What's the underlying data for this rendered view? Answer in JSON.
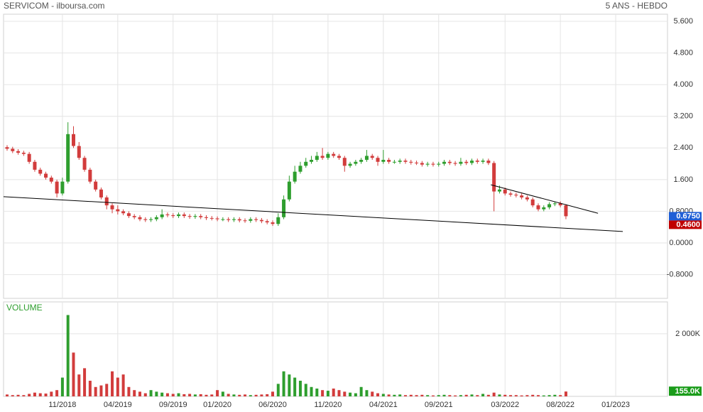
{
  "chart_data": [
    {
      "type": "candlestick",
      "title": "SERVICOM - ilboursa.com",
      "subtitle": "5 ANS - HEBDO",
      "up_color": "#2e9e2e",
      "down_color": "#d23c3c",
      "grid": true,
      "xlim": [
        4.68,
        64.68
      ],
      "xticks": [
        {
          "value": 10,
          "label": "11/2018"
        },
        {
          "value": 15,
          "label": "04/2019"
        },
        {
          "value": 20,
          "label": "09/2019"
        },
        {
          "value": 24,
          "label": "01/2020"
        },
        {
          "value": 29,
          "label": "06/2020"
        },
        {
          "value": 34,
          "label": "11/2020"
        },
        {
          "value": 39,
          "label": "04/2021"
        },
        {
          "value": 44,
          "label": "09/2021"
        },
        {
          "value": 50,
          "label": "03/2022"
        },
        {
          "value": 55,
          "label": "08/2022"
        },
        {
          "value": 60,
          "label": "01/2023"
        }
      ],
      "ylim": [
        -1.4,
        5.78
      ],
      "yticks": [
        {
          "value": 5.6,
          "label": "5.600"
        },
        {
          "value": 4.8,
          "label": "4.800"
        },
        {
          "value": 4,
          "label": "4.000"
        },
        {
          "value": 3.2,
          "label": "3.200"
        },
        {
          "value": 2.4,
          "label": "2.400"
        },
        {
          "value": 1.6,
          "label": "1.600"
        },
        {
          "value": 0.8,
          "label": "0.8000"
        },
        {
          "value": 0,
          "label": "0.0000"
        },
        {
          "value": -0.8,
          "label": "-0.8000"
        }
      ],
      "x": [
        5,
        5.5,
        6,
        6.5,
        7,
        7.5,
        8,
        8.5,
        9,
        9.5,
        10,
        10.5,
        11,
        11.5,
        12,
        12.5,
        13,
        13.5,
        14,
        14.5,
        15,
        15.5,
        16,
        16.5,
        17,
        17.5,
        18,
        18.5,
        19,
        19.5,
        20,
        20.5,
        21,
        21.5,
        22,
        22.5,
        23,
        23.5,
        24,
        24.5,
        25,
        25.5,
        26,
        26.5,
        27,
        27.5,
        28,
        28.5,
        29,
        29.5,
        30,
        30.5,
        31,
        31.5,
        32,
        32.5,
        33,
        33.5,
        34,
        34.5,
        35,
        35.5,
        36,
        36.5,
        37,
        37.5,
        38,
        38.5,
        39,
        39.5,
        40,
        40.5,
        41,
        41.5,
        42,
        42.5,
        43,
        43.5,
        44,
        44.5,
        45,
        45.5,
        46,
        46.5,
        47,
        47.5,
        48,
        48.5,
        49,
        49.5,
        50,
        50.5,
        51,
        51.5,
        52,
        52.5,
        53,
        53.5,
        54,
        54.5,
        55,
        55.5
      ],
      "open": [
        2.42,
        2.38,
        2.32,
        2.28,
        2.25,
        2.05,
        1.85,
        1.75,
        1.65,
        1.55,
        1.25,
        1.55,
        2.75,
        2.45,
        2.15,
        1.85,
        1.55,
        1.35,
        1.15,
        0.95,
        0.85,
        0.8,
        0.75,
        0.68,
        0.65,
        0.6,
        0.58,
        0.6,
        0.65,
        0.72,
        0.7,
        0.68,
        0.72,
        0.68,
        0.66,
        0.68,
        0.65,
        0.63,
        0.62,
        0.6,
        0.6,
        0.58,
        0.6,
        0.57,
        0.56,
        0.6,
        0.58,
        0.55,
        0.52,
        0.48,
        0.65,
        1.1,
        1.55,
        1.8,
        1.95,
        2.05,
        2.1,
        2.2,
        2.15,
        2.25,
        2.2,
        2.15,
        1.95,
        2.0,
        2.05,
        2.1,
        2.2,
        2.15,
        2.05,
        2.1,
        2.05,
        2.05,
        2.08,
        2.05,
        2.03,
        2.02,
        1.98,
        2.0,
        1.98,
        2.0,
        2.05,
        2.02,
        2.0,
        2.05,
        2.02,
        2.08,
        2.05,
        2.08,
        2.02,
        1.3,
        1.35,
        1.25,
        1.22,
        1.2,
        1.15,
        1.1,
        0.95,
        0.85,
        0.9,
        0.98,
        1.0,
        0.95
      ],
      "high": [
        2.47,
        2.43,
        2.37,
        2.33,
        2.3,
        2.1,
        1.9,
        1.8,
        1.7,
        1.6,
        1.65,
        3.05,
        2.95,
        2.55,
        2.2,
        1.9,
        1.6,
        1.4,
        1.2,
        1.0,
        0.95,
        0.85,
        0.8,
        0.73,
        0.7,
        0.65,
        0.65,
        0.7,
        0.85,
        0.77,
        0.75,
        0.77,
        0.77,
        0.73,
        0.73,
        0.73,
        0.7,
        0.68,
        0.67,
        0.65,
        0.65,
        0.65,
        0.65,
        0.62,
        0.65,
        0.65,
        0.63,
        0.6,
        0.57,
        0.75,
        1.2,
        1.7,
        1.95,
        2.05,
        2.15,
        2.2,
        2.3,
        2.4,
        2.3,
        2.3,
        2.25,
        2.2,
        2.05,
        2.1,
        2.15,
        2.35,
        2.25,
        2.2,
        2.35,
        2.15,
        2.1,
        2.13,
        2.13,
        2.1,
        2.08,
        2.07,
        2.05,
        2.05,
        2.05,
        2.1,
        2.1,
        2.07,
        2.15,
        2.1,
        2.13,
        2.13,
        2.13,
        2.13,
        2.07,
        1.45,
        1.4,
        1.3,
        1.27,
        1.25,
        1.2,
        1.15,
        1.0,
        0.95,
        1.03,
        1.05,
        1.05,
        0.98
      ],
      "low": [
        2.33,
        2.27,
        2.23,
        2.2,
        2.0,
        1.8,
        1.7,
        1.6,
        1.5,
        1.15,
        1.2,
        1.5,
        2.4,
        2.1,
        1.8,
        1.5,
        1.3,
        1.1,
        0.85,
        0.75,
        0.72,
        0.7,
        0.63,
        0.6,
        0.55,
        0.53,
        0.53,
        0.55,
        0.6,
        0.65,
        0.63,
        0.63,
        0.63,
        0.61,
        0.61,
        0.6,
        0.58,
        0.57,
        0.55,
        0.55,
        0.53,
        0.53,
        0.52,
        0.51,
        0.51,
        0.53,
        0.5,
        0.47,
        0.43,
        0.43,
        0.6,
        1.05,
        1.5,
        1.75,
        1.9,
        2.0,
        2.05,
        2.1,
        2.1,
        2.15,
        2.1,
        1.8,
        1.9,
        1.95,
        2.0,
        2.05,
        2.1,
        1.95,
        2.0,
        2.0,
        2.0,
        2.0,
        2.0,
        1.98,
        1.97,
        1.93,
        1.93,
        1.93,
        1.93,
        1.95,
        1.97,
        1.95,
        1.95,
        1.97,
        1.97,
        2.0,
        2.0,
        1.97,
        0.8,
        1.25,
        1.2,
        1.17,
        1.15,
        1.1,
        1.05,
        0.9,
        0.8,
        0.8,
        0.85,
        0.93,
        0.9,
        0.6
      ],
      "close": [
        2.38,
        2.32,
        2.28,
        2.25,
        2.05,
        1.85,
        1.75,
        1.65,
        1.55,
        1.25,
        1.55,
        2.75,
        2.45,
        2.15,
        1.85,
        1.55,
        1.35,
        1.15,
        0.95,
        0.85,
        0.8,
        0.75,
        0.68,
        0.65,
        0.6,
        0.58,
        0.6,
        0.65,
        0.72,
        0.7,
        0.68,
        0.72,
        0.68,
        0.66,
        0.68,
        0.65,
        0.63,
        0.62,
        0.6,
        0.6,
        0.58,
        0.6,
        0.57,
        0.56,
        0.6,
        0.58,
        0.55,
        0.52,
        0.48,
        0.65,
        1.1,
        1.55,
        1.8,
        1.95,
        2.05,
        2.1,
        2.2,
        2.15,
        2.25,
        2.2,
        2.15,
        1.95,
        2.0,
        2.05,
        2.1,
        2.2,
        2.15,
        2.05,
        2.1,
        2.05,
        2.05,
        2.08,
        2.05,
        2.03,
        2.02,
        1.98,
        2.0,
        1.98,
        2.0,
        2.05,
        2.02,
        2.0,
        2.05,
        2.02,
        2.08,
        2.05,
        2.08,
        2.02,
        1.3,
        1.35,
        1.25,
        1.22,
        1.2,
        1.15,
        1.1,
        0.95,
        0.85,
        0.9,
        0.98,
        1.0,
        0.95,
        0.675
      ],
      "trend_lines": [
        {
          "x": [
            4.68,
            60.64
          ],
          "y": [
            1.17,
            0.29
          ],
          "color": "#000000"
        },
        {
          "x": [
            48.72,
            58.4
          ],
          "y": [
            1.47,
            0.75
          ],
          "color": "#000000"
        }
      ],
      "markers": [
        {
          "value": 0.675,
          "label": "0.6750",
          "color": "#1f5fd6"
        },
        {
          "value": 0.46,
          "label": "0.4600",
          "color": "#c00000"
        }
      ]
    },
    {
      "type": "bar",
      "title": "VOLUME",
      "title_color": "#2e9e2e",
      "ylim": [
        0,
        3020000
      ],
      "yticks": [
        {
          "value": 2000000,
          "label": "2 000K"
        }
      ],
      "values": [
        60000,
        40000,
        50000,
        40000,
        80000,
        120000,
        100000,
        90000,
        150000,
        200000,
        600000,
        2600000,
        1400000,
        700000,
        900000,
        500000,
        300000,
        350000,
        400000,
        800000,
        600000,
        700000,
        300000,
        200000,
        150000,
        100000,
        200000,
        150000,
        120000,
        100000,
        80000,
        100000,
        70000,
        80000,
        60000,
        70000,
        50000,
        60000,
        200000,
        150000,
        80000,
        60000,
        50000,
        60000,
        40000,
        50000,
        60000,
        70000,
        150000,
        400000,
        800000,
        700000,
        600000,
        500000,
        400000,
        300000,
        250000,
        200000,
        180000,
        250000,
        200000,
        150000,
        120000,
        100000,
        300000,
        200000,
        150000,
        100000,
        80000,
        60000,
        50000,
        60000,
        40000,
        50000,
        40000,
        50000,
        40000,
        30000,
        40000,
        50000,
        40000,
        30000,
        40000,
        50000,
        60000,
        40000,
        80000,
        50000,
        120000,
        60000,
        50000,
        40000,
        40000,
        30000,
        40000,
        50000,
        40000,
        30000,
        40000,
        50000,
        40000,
        155000
      ],
      "markers": [
        {
          "value": 155000,
          "label": "155.0K",
          "color": "#1a9c1a"
        }
      ]
    }
  ]
}
